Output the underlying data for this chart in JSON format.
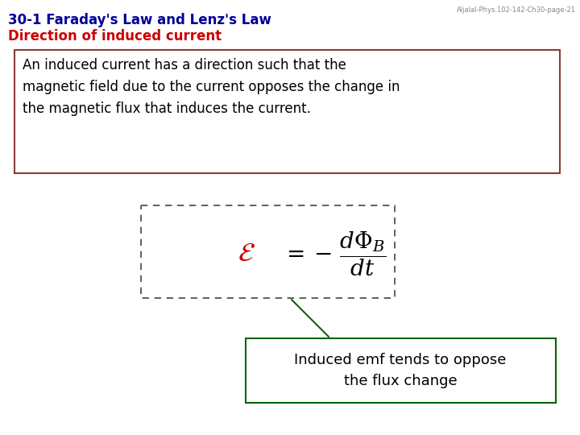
{
  "title_line1": "30-1 Faraday's Law and Lenz's Law",
  "title_line2": "Direction of induced current",
  "title_color1": "#000099",
  "title_color2": "#cc0000",
  "watermark": "Aljalal-Phys.102-142-Ch30-page-21",
  "body_text": "An induced current has a direction such that the\nmagnetic field due to the current opposes the change in\nthe magnetic flux that induces the current.",
  "body_box_color": "#8B3A3A",
  "formula_box_color": "#444444",
  "arrow_color": "#006600",
  "label_box_color": "#006600",
  "label_text": "Induced emf tends to oppose\nthe flux change",
  "bg_color": "#ffffff",
  "title_fontsize": 12,
  "body_fontsize": 12,
  "formula_fontsize": 20,
  "label_fontsize": 13
}
